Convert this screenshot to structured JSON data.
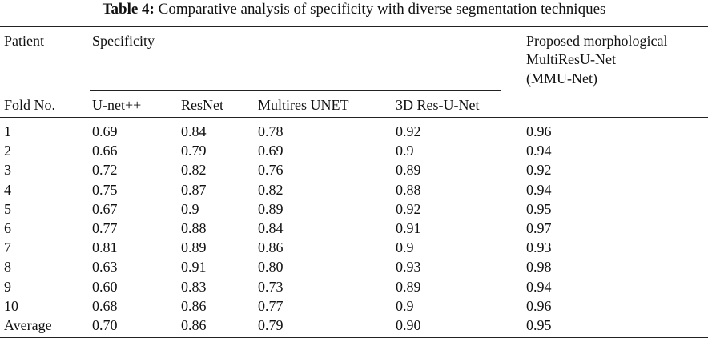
{
  "table": {
    "caption_label": "Table 4:",
    "caption_text": "Comparative analysis of specificity with diverse segmentation techniques",
    "header_row1": {
      "patient": "Patient",
      "specificity": "Specificity",
      "proposed_line1": "Proposed morphological",
      "proposed_line2": "MultiResU-Net",
      "proposed_line3": "(MMU-Net)"
    },
    "header_row2": [
      "Fold No.",
      "U-net++",
      "ResNet",
      "Multires UNET",
      "3D Res-U-Net"
    ],
    "rows": [
      [
        "1",
        "0.69",
        "0.84",
        "0.78",
        "0.92",
        "0.96"
      ],
      [
        "2",
        "0.66",
        "0.79",
        "0.69",
        "0.9",
        "0.94"
      ],
      [
        "3",
        "0.72",
        "0.82",
        "0.76",
        "0.89",
        "0.92"
      ],
      [
        "4",
        "0.75",
        "0.87",
        "0.82",
        "0.88",
        "0.94"
      ],
      [
        "5",
        "0.67",
        "0.9",
        "0.89",
        "0.92",
        "0.95"
      ],
      [
        "6",
        "0.77",
        "0.88",
        "0.84",
        "0.91",
        "0.97"
      ],
      [
        "7",
        "0.81",
        "0.89",
        "0.86",
        "0.9",
        "0.93"
      ],
      [
        "8",
        "0.63",
        "0.91",
        "0.80",
        "0.93",
        "0.98"
      ],
      [
        "9",
        "0.60",
        "0.83",
        "0.73",
        "0.89",
        "0.94"
      ],
      [
        "10",
        "0.68",
        "0.86",
        "0.77",
        "0.9",
        "0.96"
      ],
      [
        "Average",
        "0.70",
        "0.86",
        "0.79",
        "0.90",
        "0.95"
      ]
    ]
  }
}
